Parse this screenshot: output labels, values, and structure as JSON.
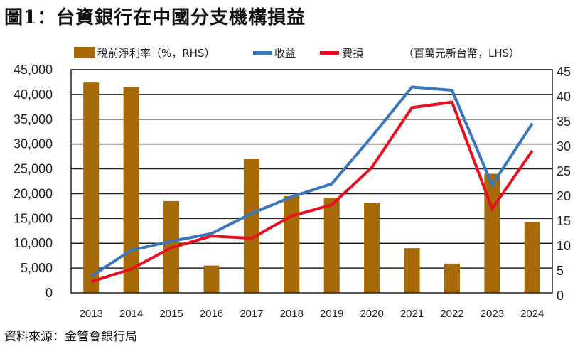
{
  "title": "圖1：台資銀行在中國分支機構損益",
  "source": "資料來源：金管會銀行局",
  "chart_data": {
    "type": "bar+line",
    "title": "圖1：台資銀行在中國分支機構損益",
    "unit_note": "（百萬元新台幣，LHS）",
    "categories": [
      "2013",
      "2014",
      "2015",
      "2016",
      "2017",
      "2018",
      "2019",
      "2020",
      "2021",
      "2022",
      "2023",
      "2024"
    ],
    "left_axis": {
      "ylim": [
        0,
        45000
      ],
      "ticks": [
        "0",
        "5,000",
        "10,000",
        "15,000",
        "20,000",
        "25,000",
        "30,000",
        "35,000",
        "40,000",
        "45,000"
      ]
    },
    "right_axis": {
      "ylim": [
        0,
        45
      ],
      "ticks": [
        "0",
        "5",
        "10",
        "15",
        "20",
        "25",
        "30",
        "35",
        "40",
        "45"
      ]
    },
    "grid": true,
    "legend_placement": "top",
    "series": [
      {
        "name": "稅前淨利率（%，RHS）",
        "type": "bar",
        "axis": "right",
        "color": "#A66A06",
        "values": [
          42.4,
          41.5,
          18.5,
          5.5,
          27.0,
          19.5,
          19.2,
          18.2,
          9.0,
          5.9,
          24.0,
          14.3
        ]
      },
      {
        "name": "收益",
        "type": "line",
        "axis": "left",
        "color": "#3A75C0",
        "values": [
          3350,
          8600,
          10400,
          11950,
          16000,
          19350,
          22000,
          31500,
          41500,
          40850,
          21750,
          34150
        ]
      },
      {
        "name": "費損",
        "type": "line",
        "axis": "left",
        "color": "#E8101E",
        "values": [
          2250,
          4800,
          9100,
          11450,
          11000,
          15500,
          17750,
          25300,
          37350,
          38450,
          16950,
          28650
        ]
      }
    ]
  }
}
